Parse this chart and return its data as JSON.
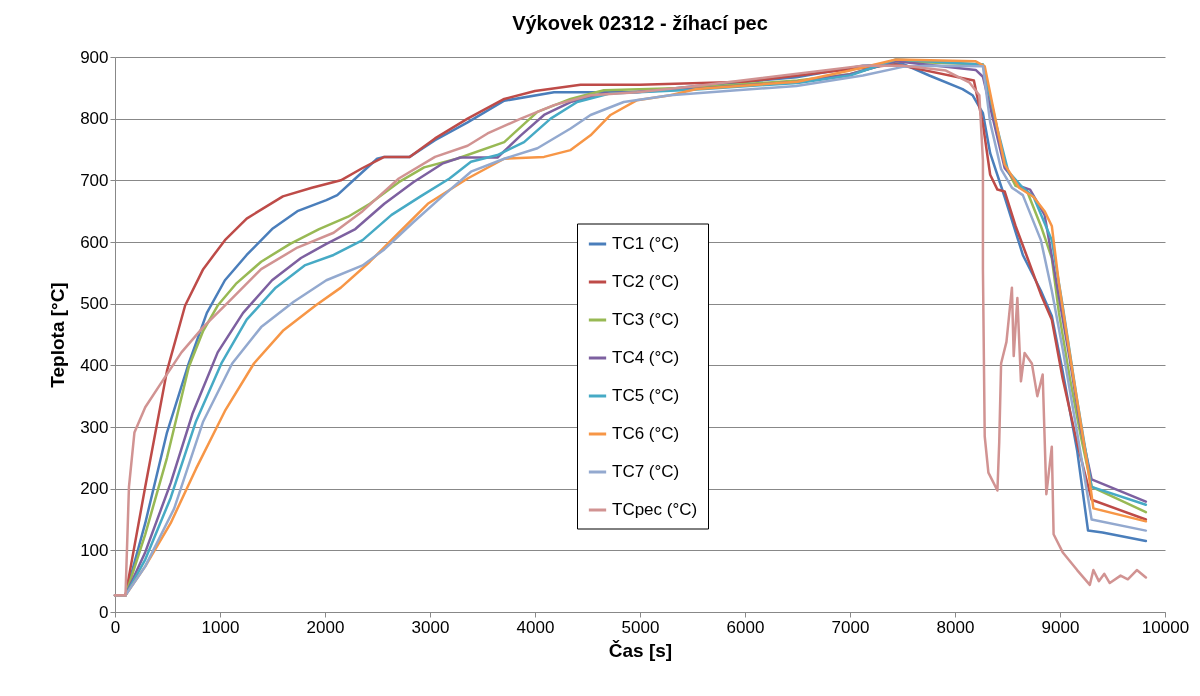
{
  "chart_data": {
    "type": "line",
    "title": "Výkovek 02312 - žíhací pec",
    "xlabel": "Čas [s]",
    "ylabel": "Teplota [°C]",
    "xlim": [
      0,
      10000
    ],
    "xticks": [
      0,
      1000,
      2000,
      3000,
      4000,
      5000,
      6000,
      7000,
      8000,
      9000,
      10000
    ],
    "ylim": [
      0,
      900
    ],
    "yticks": [
      0,
      100,
      200,
      300,
      400,
      500,
      600,
      700,
      800,
      900
    ],
    "grid": "y",
    "legend": "center",
    "series": [
      {
        "name": "TC1 (°C)",
        "color": "#4a7ebb",
        "x": [
          0,
          100,
          288,
          495,
          702,
          875,
          1047,
          1254,
          1496,
          1737,
          2013,
          2117,
          2289,
          2496,
          2565,
          2806,
          3048,
          3358,
          3707,
          4181,
          4972,
          5541,
          6490,
          7123,
          7502,
          7755,
          8072,
          8167,
          8266,
          8335,
          8473,
          8646,
          8818,
          8922,
          9025,
          9163,
          9267,
          9405,
          9818
        ],
        "values": [
          27,
          27,
          144,
          291,
          403,
          485,
          538,
          579,
          621,
          650,
          668,
          676,
          703,
          735,
          738,
          738,
          765,
          794,
          829,
          843,
          843,
          853,
          867,
          886,
          889,
          870,
          848,
          838,
          809,
          744,
          673,
          579,
          521,
          480,
          391,
          262,
          132,
          129,
          115
        ]
      },
      {
        "name": "TC2 (°C)",
        "color": "#be4b48",
        "x": [
          0,
          100,
          288,
          495,
          668,
          840,
          1047,
          1254,
          1599,
          1875,
          2151,
          2358,
          2565,
          2806,
          3048,
          3358,
          3707,
          4000,
          4434,
          5000,
          6000,
          7000,
          7438,
          8180,
          8266,
          8335,
          8404,
          8473,
          8577,
          8680,
          8818,
          8922,
          9025,
          9163,
          9301,
          9818
        ],
        "values": [
          27,
          27,
          203,
          391,
          497,
          556,
          603,
          638,
          674,
          688,
          700,
          720,
          738,
          738,
          768,
          800,
          832,
          845,
          855,
          855,
          860,
          880,
          888,
          862,
          791,
          709,
          685,
          682,
          626,
          579,
          515,
          474,
          379,
          274,
          182,
          150
        ]
      },
      {
        "name": "TC3 (°C)",
        "color": "#98b954",
        "x": [
          0,
          100,
          288,
          495,
          702,
          840,
          978,
          1151,
          1392,
          1668,
          1944,
          2220,
          2427,
          2703,
          2944,
          3255,
          3707,
          4023,
          4339,
          4656,
          5500,
          6500,
          7000,
          7438,
          8266,
          8370,
          8473,
          8577,
          8680,
          8818,
          8922,
          8990,
          9094,
          9198,
          9301,
          9818
        ],
        "values": [
          27,
          27,
          126,
          250,
          397,
          456,
          497,
          532,
          568,
          597,
          621,
          641,
          662,
          697,
          721,
          735,
          762,
          811,
          832,
          846,
          850,
          862,
          872,
          893,
          888,
          806,
          726,
          691,
          685,
          626,
          574,
          485,
          379,
          285,
          203,
          162
        ]
      },
      {
        "name": "TC4 (°C)",
        "color": "#7d60a0",
        "x": [
          0,
          100,
          288,
          530,
          737,
          978,
          1220,
          1496,
          1771,
          2013,
          2289,
          2565,
          2841,
          3117,
          3289,
          3643,
          3865,
          4086,
          4339,
          4656,
          5500,
          6500,
          7000,
          7438,
          8197,
          8266,
          8370,
          8473,
          8611,
          8715,
          8853,
          8956,
          9094,
          9198,
          9301,
          9818
        ],
        "values": [
          27,
          27,
          97,
          209,
          321,
          421,
          485,
          538,
          574,
          597,
          621,
          662,
          697,
          727,
          737,
          737,
          773,
          806,
          827,
          841,
          848,
          860,
          872,
          893,
          879,
          868,
          794,
          720,
          691,
          685,
          644,
          544,
          409,
          297,
          215,
          179
        ]
      },
      {
        "name": "TC5 (°C)",
        "color": "#46aac5",
        "x": [
          0,
          100,
          288,
          530,
          771,
          1013,
          1254,
          1530,
          1806,
          2082,
          2358,
          2634,
          2910,
          3186,
          3390,
          3643,
          3896,
          4149,
          4402,
          4719,
          5500,
          6500,
          7000,
          7438,
          8266,
          8404,
          8508,
          8646,
          8749,
          8922,
          9025,
          9163,
          9301,
          9818
        ],
        "values": [
          27,
          27,
          85,
          185,
          309,
          403,
          474,
          526,
          562,
          579,
          603,
          644,
          674,
          703,
          730,
          741,
          762,
          800,
          827,
          841,
          847,
          858,
          870,
          896,
          888,
          783,
          714,
          688,
          673,
          603,
          497,
          344,
          203,
          174
        ]
      },
      {
        "name": "TC6 (°C)",
        "color": "#f79646",
        "x": [
          0,
          100,
          288,
          530,
          771,
          1047,
          1323,
          1599,
          1910,
          2151,
          2427,
          2703,
          2979,
          3358,
          3707,
          4086,
          4339,
          4529,
          4719,
          4972,
          5288,
          5541,
          6500,
          7000,
          7438,
          8197,
          8283,
          8370,
          8473,
          8611,
          8749,
          8853,
          8922,
          8990,
          9129,
          9267,
          9318,
          9818
        ],
        "values": [
          27,
          27,
          74,
          144,
          232,
          326,
          403,
          456,
          497,
          526,
          568,
          615,
          662,
          703,
          735,
          738,
          749,
          773,
          806,
          830,
          838,
          848,
          860,
          878,
          896,
          893,
          885,
          812,
          726,
          688,
          673,
          650,
          626,
          532,
          379,
          232,
          168,
          147
        ]
      },
      {
        "name": "TC7 (°C)",
        "color": "#93a9cf",
        "x": [
          0,
          100,
          288,
          564,
          840,
          1116,
          1392,
          1702,
          2013,
          2358,
          2565,
          2841,
          3117,
          3390,
          3707,
          4023,
          4339,
          4529,
          4845,
          5288,
          5921,
          6490,
          7123,
          7502,
          7755,
          8266,
          8335,
          8439,
          8542,
          8646,
          8818,
          8922,
          9025,
          9163,
          9301,
          9818
        ],
        "values": [
          27,
          27,
          74,
          168,
          309,
          403,
          462,
          503,
          538,
          562,
          588,
          632,
          674,
          714,
          735,
          752,
          784,
          806,
          827,
          838,
          846,
          853,
          870,
          884,
          886,
          885,
          794,
          718,
          688,
          676,
          603,
          521,
          427,
          291,
          150,
          132
        ]
      },
      {
        "name": "TCpec (°C)",
        "color": "#d19392",
        "x": [
          0,
          100,
          133,
          185,
          288,
          426,
          633,
          840,
          1082,
          1392,
          1737,
          2082,
          2358,
          2703,
          3048,
          3358,
          3548,
          3865,
          4181,
          4529,
          4972,
          5541,
          7123,
          7502,
          7913,
          8135,
          8232,
          8266,
          8266,
          8283,
          8318,
          8404,
          8421,
          8439,
          8490,
          8542,
          8559,
          8594,
          8628,
          8663,
          8732,
          8784,
          8835,
          8870,
          8922,
          8939,
          9025,
          9163,
          9284,
          9318,
          9370,
          9422,
          9474,
          9577,
          9646,
          9732,
          9818
        ],
        "values": [
          27,
          27,
          203,
          291,
          332,
          368,
          421,
          462,
          503,
          556,
          591,
          615,
          650,
          703,
          738,
          756,
          776,
          800,
          822,
          838,
          843,
          853,
          886,
          886,
          878,
          859,
          838,
          732,
          556,
          285,
          226,
          197,
          274,
          403,
          438,
          526,
          415,
          509,
          374,
          420,
          403,
          350,
          385,
          191,
          268,
          126,
          97,
          68,
          44,
          68,
          50,
          62,
          47,
          59,
          53,
          68,
          56
        ]
      }
    ]
  }
}
